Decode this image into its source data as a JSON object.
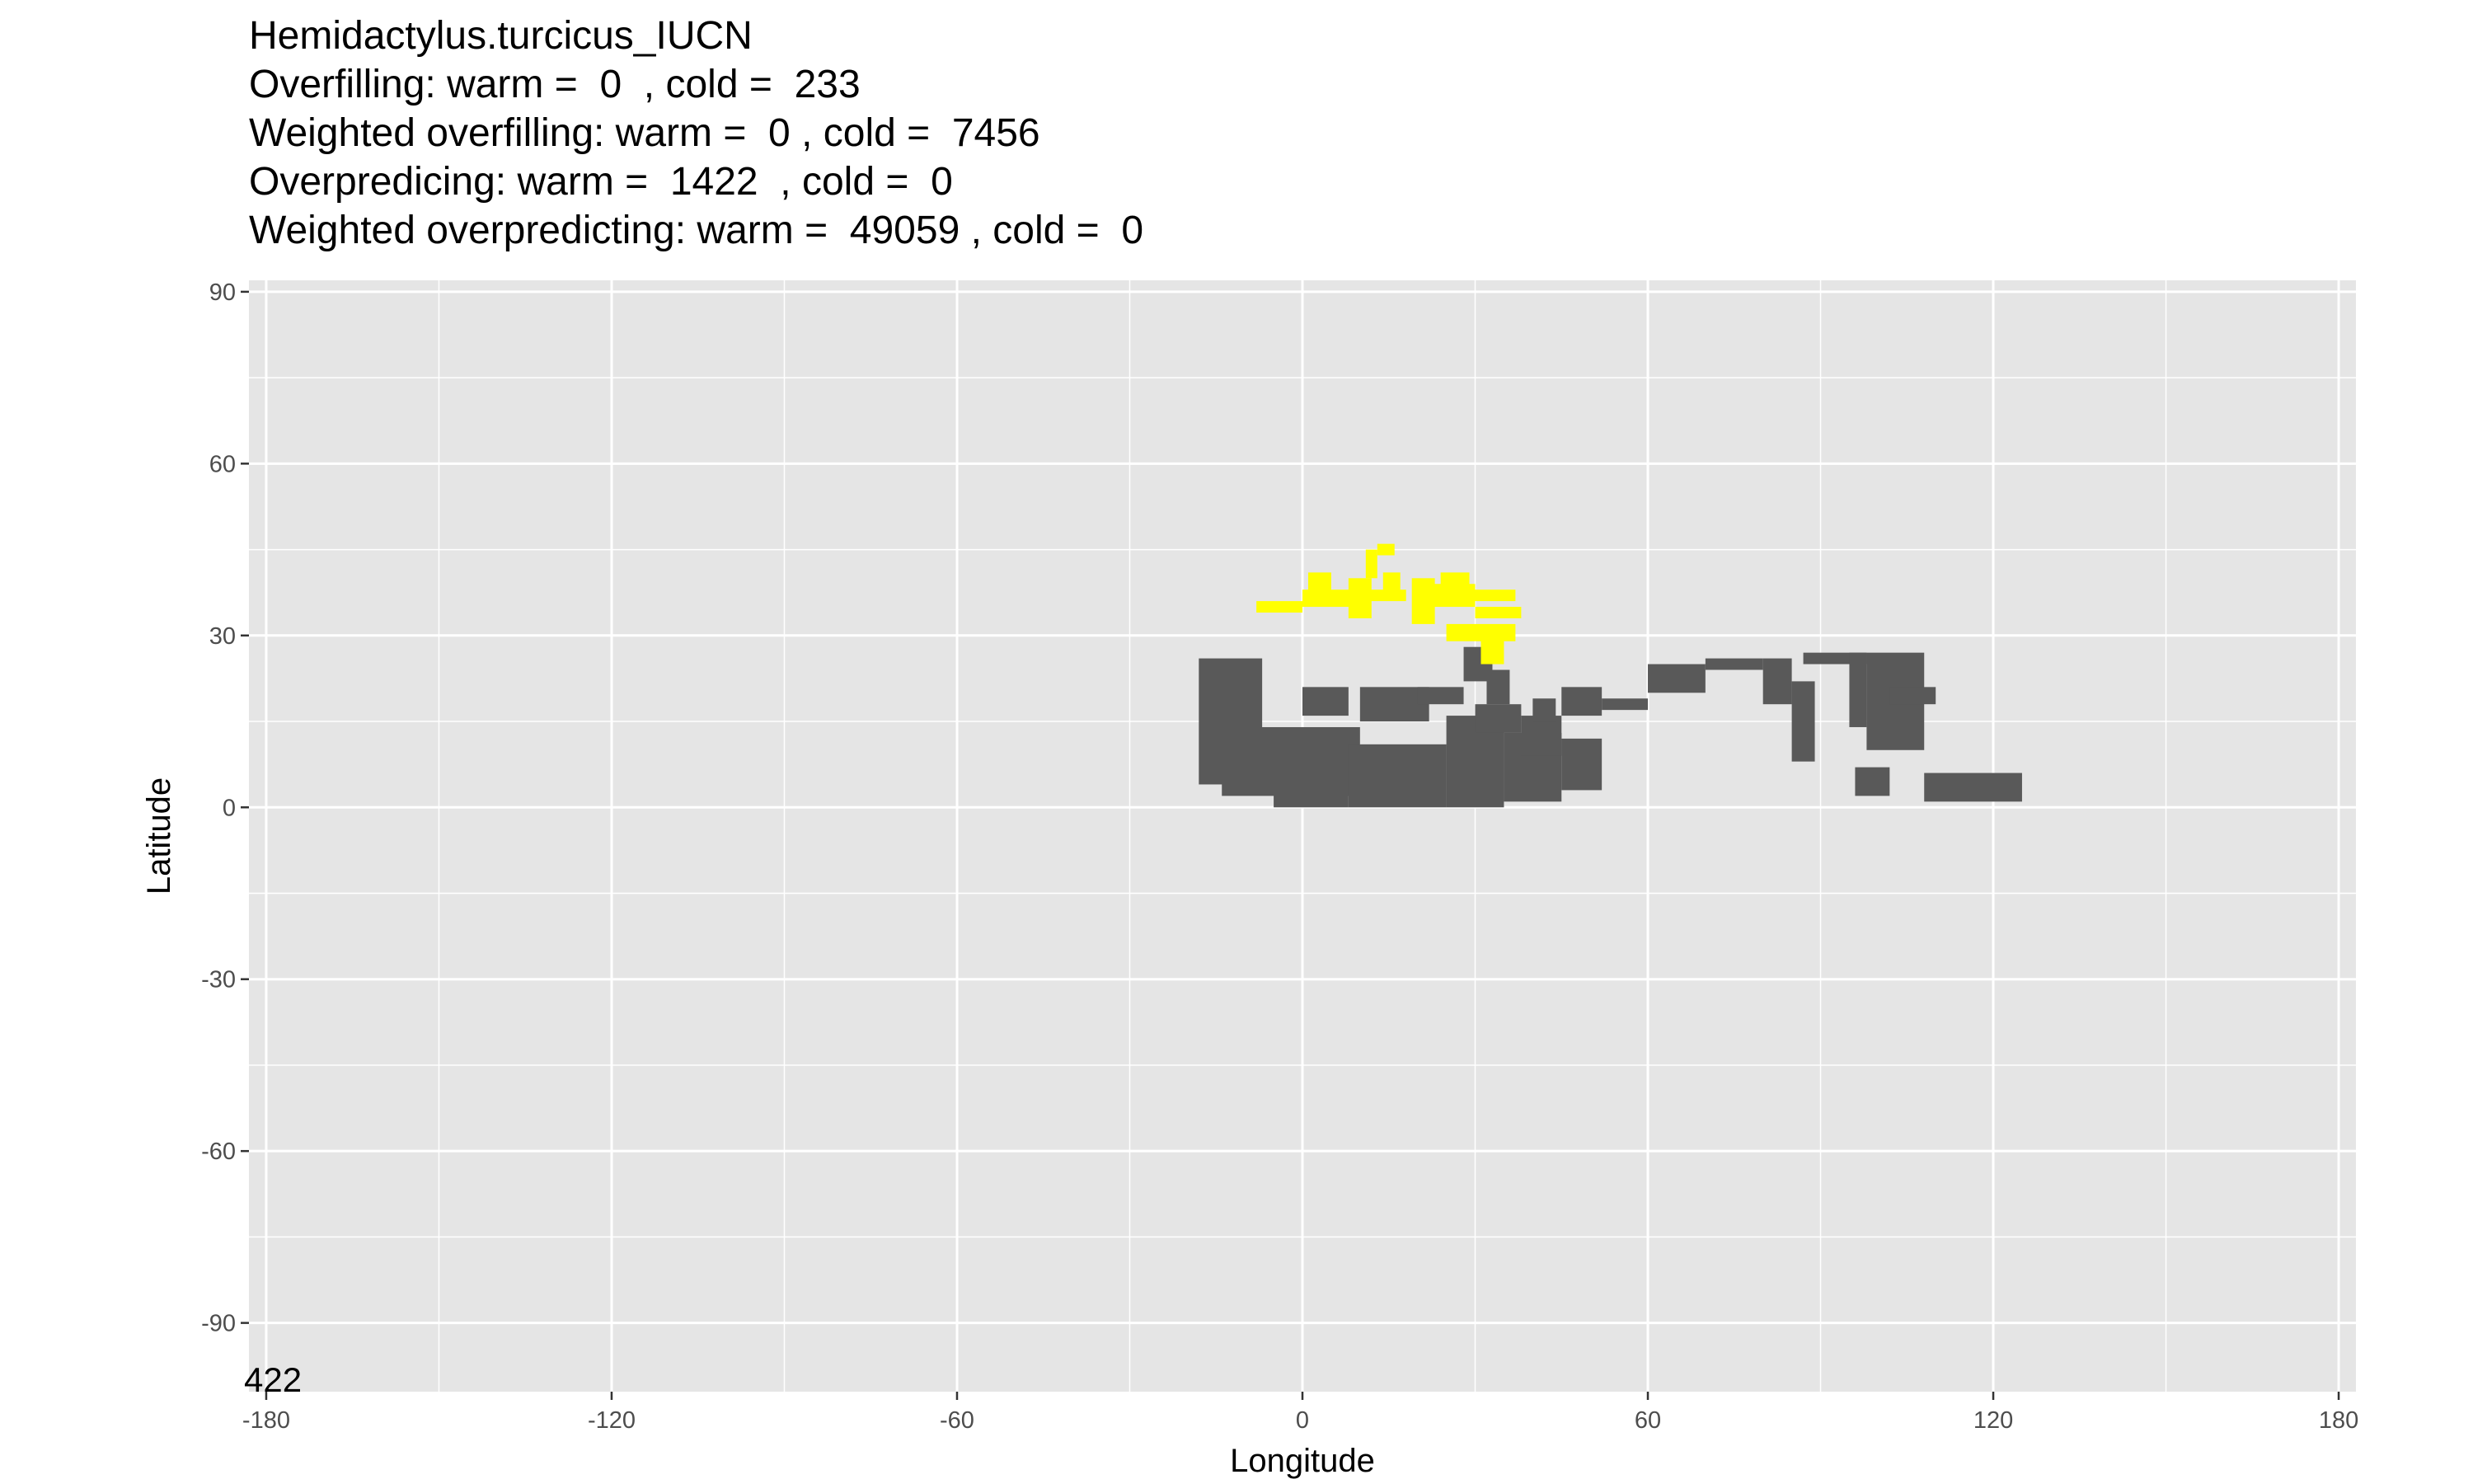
{
  "title_lines": [
    "Hemidactylus.turcicus_IUCN",
    "Overfilling: warm =  0  , cold =  233",
    "Weighted overfilling: warm =  0 , cold =  7456",
    "Overpredicing: warm =  1422  , cold =  0",
    "Weighted overpredicting: warm =  49059 , cold =  0"
  ],
  "corner_label": "422",
  "chart_data": {
    "type": "heatmap",
    "xlabel": "Longitude",
    "ylabel": "Latitude",
    "xlim": [
      -183,
      183
    ],
    "ylim": [
      -102,
      92
    ],
    "x_ticks": [
      -180,
      -120,
      -60,
      0,
      60,
      120,
      180
    ],
    "y_ticks": [
      90,
      60,
      30,
      0,
      -30,
      -60,
      -90
    ],
    "grid": true,
    "colors": {
      "panel": "#e5e5e5",
      "grid": "#ffffff",
      "dark": "#595959",
      "yellow": "#ffff00"
    },
    "series": [
      {
        "values": [
          [
            -18,
            4,
            -7,
            26
          ],
          [
            -14,
            2,
            10,
            14
          ],
          [
            -5,
            0,
            8,
            13
          ],
          [
            8,
            0,
            25,
            11
          ],
          [
            25,
            0,
            35,
            16
          ],
          [
            35,
            1,
            45,
            13
          ],
          [
            45,
            3,
            52,
            12
          ],
          [
            30,
            13,
            38,
            18
          ],
          [
            38,
            9,
            45,
            16
          ],
          [
            32,
            18,
            36,
            24
          ],
          [
            40,
            15,
            44,
            19
          ],
          [
            45,
            16,
            52,
            21
          ],
          [
            52,
            17,
            60,
            19
          ],
          [
            60,
            20,
            70,
            25
          ],
          [
            70,
            24,
            80,
            26
          ],
          [
            80,
            18,
            85,
            26
          ],
          [
            85,
            8,
            89,
            22
          ],
          [
            87,
            25,
            98,
            27
          ],
          [
            95,
            14,
            98,
            27
          ],
          [
            98,
            10,
            108,
            27
          ],
          [
            102,
            18,
            110,
            21
          ],
          [
            96,
            2,
            102,
            7
          ],
          [
            108,
            1,
            125,
            6
          ],
          [
            0,
            16,
            8,
            21
          ],
          [
            10,
            15,
            22,
            21
          ],
          [
            20,
            18,
            28,
            21
          ],
          [
            28,
            22,
            33,
            28
          ]
        ]
      },
      {
        "values": [
          [
            -8,
            34,
            0,
            36
          ],
          [
            0,
            35,
            10,
            38
          ],
          [
            1,
            37,
            5,
            41
          ],
          [
            8,
            33,
            12,
            40
          ],
          [
            10,
            36,
            18,
            38
          ],
          [
            11,
            40,
            13,
            45
          ],
          [
            14,
            37,
            17,
            41
          ],
          [
            13,
            44,
            16,
            46
          ],
          [
            19,
            32,
            23,
            40
          ],
          [
            22,
            35,
            30,
            39
          ],
          [
            24,
            38,
            29,
            41
          ],
          [
            28,
            36,
            37,
            38
          ],
          [
            30,
            33,
            38,
            35
          ],
          [
            25,
            29,
            37,
            32
          ],
          [
            31,
            25,
            35,
            31
          ]
        ]
      }
    ]
  }
}
